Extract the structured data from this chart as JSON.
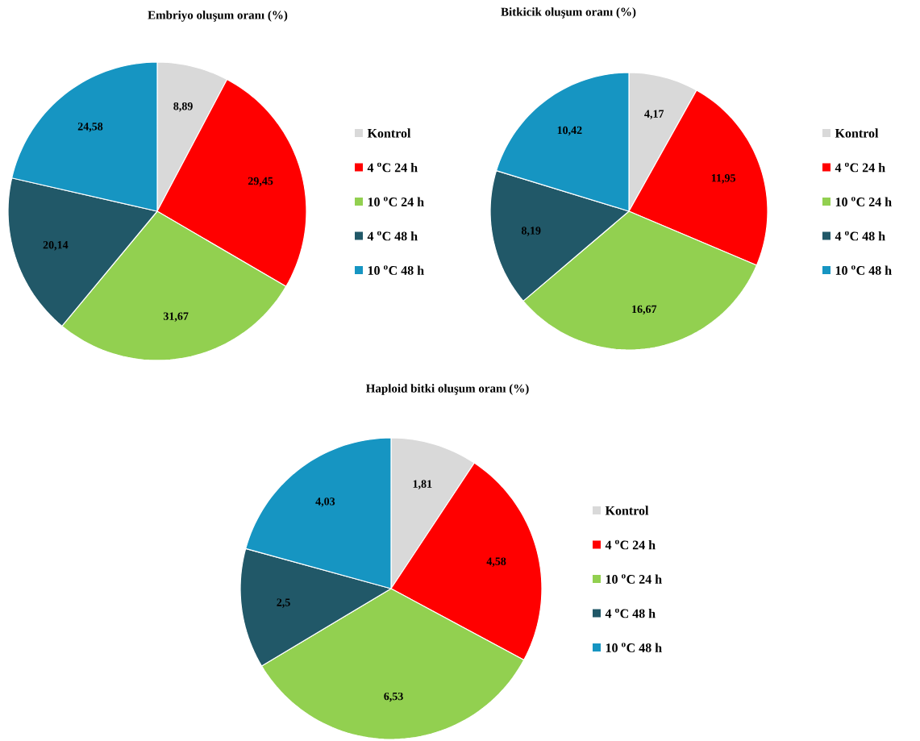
{
  "chart_data": [
    {
      "type": "pie",
      "title": "Embriyo oluşum oranı (%)",
      "categories": [
        "Kontrol",
        "4 $^{o}$C 24 h",
        "10 $^{o}$C 24 h",
        "4 $^{o}$C 48 h",
        "10 $^{o}$C 48 h"
      ],
      "values": [
        8.89,
        29.45,
        31.67,
        20.14,
        24.58
      ],
      "value_labels": [
        "8,89",
        "29,45",
        "31,67",
        "20,14",
        "24,58"
      ],
      "colors": [
        "#d9d9d9",
        "#ff0000",
        "#92d050",
        "#215868",
        "#1695c2"
      ],
      "legend": "right"
    },
    {
      "type": "pie",
      "title": "Bitkicik oluşum oranı (%)",
      "categories": [
        "Kontrol",
        "4 $^{o}$C 24 h",
        "10 $^{o}$C 24 h",
        "4 $^{o}$C 48 h",
        "10 $^{o}$C 48 h"
      ],
      "values": [
        4.17,
        11.95,
        16.67,
        8.19,
        10.42
      ],
      "value_labels": [
        "4,17",
        "11,95",
        "16,67",
        "8,19",
        "10,42"
      ],
      "colors": [
        "#d9d9d9",
        "#ff0000",
        "#92d050",
        "#215868",
        "#1695c2"
      ],
      "legend": "right"
    },
    {
      "type": "pie",
      "title": "Haploid bitki oluşum oranı (%)",
      "categories": [
        "Kontrol",
        "4 $^{o}$C 24 h",
        "10 $^{o}$C 24 h",
        "4 $^{o}$C 48 h",
        "10 $^{o}$C 48 h"
      ],
      "values": [
        1.81,
        4.58,
        6.53,
        2.5,
        4.03
      ],
      "value_labels": [
        "1,81",
        "4,58",
        "6,53",
        "2,5",
        "4,03"
      ],
      "colors": [
        "#d9d9d9",
        "#ff0000",
        "#92d050",
        "#215868",
        "#1695c2"
      ],
      "legend": "right"
    }
  ]
}
